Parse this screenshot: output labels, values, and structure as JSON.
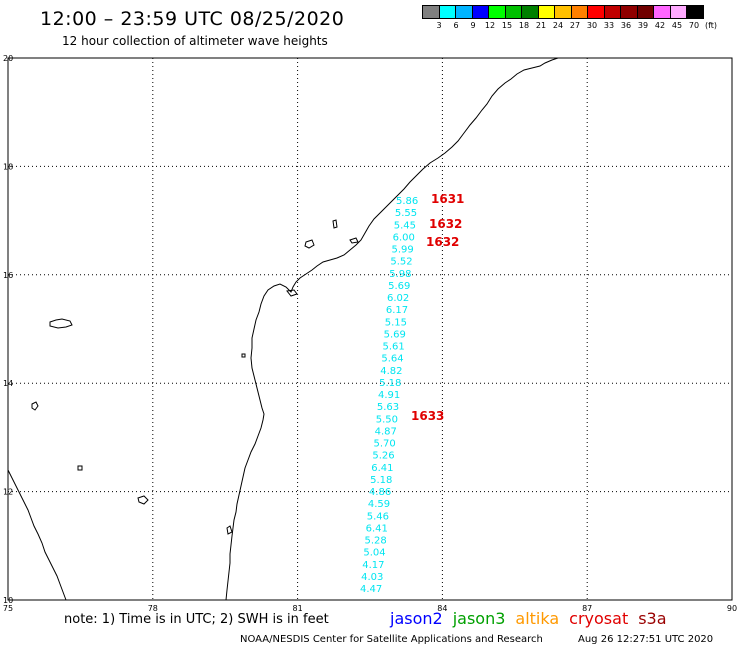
{
  "header": {
    "title": "12:00 – 23:59 UTC 08/25/2020",
    "subtitle": "12 hour collection of altimeter wave heights"
  },
  "legend": {
    "colors": [
      "#808080",
      "#00ffff",
      "#00b4ff",
      "#0000ff",
      "#00ff00",
      "#00c000",
      "#008000",
      "#ffff00",
      "#ffc000",
      "#ff8000",
      "#ff0000",
      "#c00000",
      "#900000",
      "#700000",
      "#ff66ff",
      "#ffaaff",
      "#000000"
    ],
    "labels": [
      "3",
      "6",
      "9",
      "12",
      "15",
      "18",
      "21",
      "24",
      "27",
      "30",
      "33",
      "36",
      "39",
      "42",
      "45",
      "70",
      "(ft)"
    ]
  },
  "map": {
    "lon_ticks": [
      "75",
      "78",
      "81",
      "84",
      "87",
      "90"
    ],
    "lat_ticks": [
      "20",
      "18",
      "16",
      "14",
      "12",
      "10"
    ],
    "swh_values": [
      "5.86",
      "5.55",
      "5.45",
      "6.00",
      "5.99",
      "5.52",
      "5.98",
      "5.69",
      "6.02",
      "6.17",
      "5.15",
      "5.69",
      "5.61",
      "5.64",
      "4.82",
      "5.18",
      "4.91",
      "5.63",
      "5.50",
      "4.87",
      "5.70",
      "5.26",
      "6.41",
      "5.18",
      "4.86",
      "4.59",
      "5.46",
      "6.41",
      "5.28",
      "5.04",
      "4.17",
      "4.03",
      "4.47"
    ],
    "pass_labels": [
      "1631",
      "1632",
      "1632",
      "1633"
    ]
  },
  "footer": {
    "note": "note: 1) Time is in UTC; 2) SWH is in feet",
    "satellites": [
      {
        "name": "jason2",
        "color": "#0000ff"
      },
      {
        "name": "jason3",
        "color": "#00a000"
      },
      {
        "name": "altika",
        "color": "#ff9900"
      },
      {
        "name": "cryosat",
        "color": "#e00000"
      },
      {
        "name": "s3a",
        "color": "#990000"
      }
    ],
    "credit": "NOAA/NESDIS Center for Satellite Applications and Research",
    "timestamp": "Aug 26 12:27:51 UTC 2020"
  }
}
